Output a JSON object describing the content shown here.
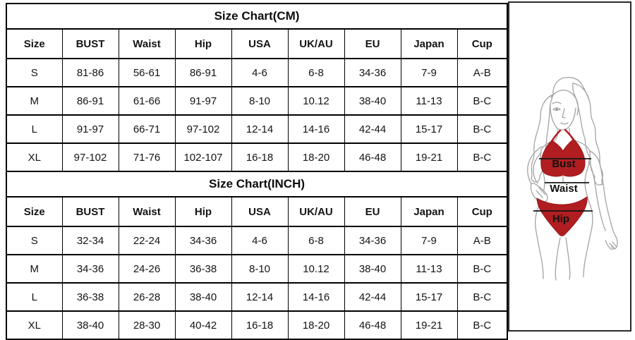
{
  "window": {
    "background": "#ffffff"
  },
  "tables": [
    {
      "title": "Size Chart(CM)",
      "columns": [
        "Size",
        "BUST",
        "Waist",
        "Hip",
        "USA",
        "UK/AU",
        "EU",
        "Japan",
        "Cup"
      ],
      "rows": [
        [
          "S",
          "81-86",
          "56-61",
          "86-91",
          "4-6",
          "6-8",
          "34-36",
          "7-9",
          "A-B"
        ],
        [
          "M",
          "86-91",
          "61-66",
          "91-97",
          "8-10",
          "10.12",
          "38-40",
          "11-13",
          "B-C"
        ],
        [
          "L",
          "91-97",
          "66-71",
          "97-102",
          "12-14",
          "14-16",
          "42-44",
          "15-17",
          "B-C"
        ],
        [
          "XL",
          "97-102",
          "71-76",
          "102-107",
          "16-18",
          "18-20",
          "46-48",
          "19-21",
          "B-C"
        ]
      ]
    },
    {
      "title": "Size Chart(INCH)",
      "columns": [
        "Size",
        "BUST",
        "Waist",
        "Hip",
        "USA",
        "UK/AU",
        "EU",
        "Japan",
        "Cup"
      ],
      "rows": [
        [
          "S",
          "32-34",
          "22-24",
          "34-36",
          "4-6",
          "6-8",
          "34-36",
          "7-9",
          "A-B"
        ],
        [
          "M",
          "34-36",
          "24-26",
          "36-38",
          "8-10",
          "10.12",
          "38-40",
          "11-13",
          "B-C"
        ],
        [
          "L",
          "36-38",
          "26-28",
          "38-40",
          "12-14",
          "14-16",
          "42-44",
          "15-17",
          "B-C"
        ],
        [
          "XL",
          "38-40",
          "28-30",
          "40-42",
          "16-18",
          "18-20",
          "46-48",
          "19-21",
          "B-C"
        ]
      ]
    }
  ],
  "figure": {
    "bust_label": "Bust",
    "waist_label": "Waist",
    "hip_label": "Hip",
    "colors": {
      "bikini_red": "#b11e21",
      "bikini_edge": "#8e1014",
      "outline_gray": "#a3a3a3",
      "measure_line": "#151515",
      "label_text": "#101010",
      "panel_border": "#2a2a2a",
      "table_border": "#000000"
    }
  }
}
